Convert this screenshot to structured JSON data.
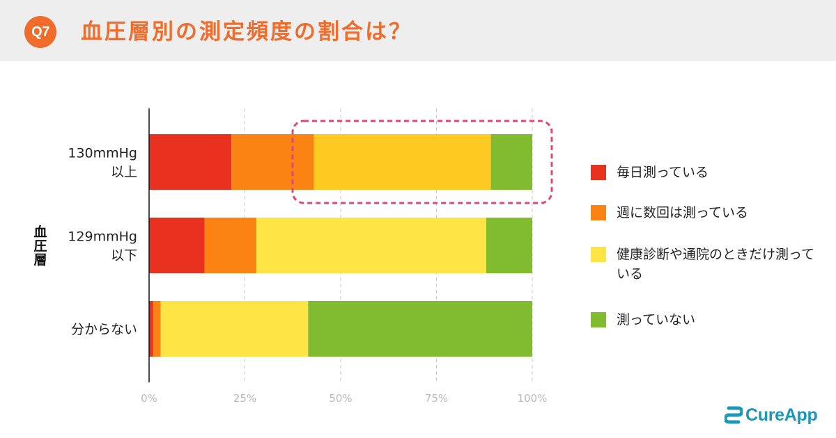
{
  "header": {
    "badge": "Q7",
    "title": "血圧層別の測定頻度の割合は？"
  },
  "logo": {
    "text": "CureApp",
    "color": "#1d97b6"
  },
  "chart_data": {
    "type": "bar",
    "orientation": "horizontal",
    "stacked": true,
    "percent": true,
    "ylabel": "血圧層",
    "categories": [
      [
        "130mmHg",
        "以上"
      ],
      [
        "129mmHg",
        "以下"
      ],
      [
        "分からない"
      ]
    ],
    "x_ticks": [
      "0%",
      "25%",
      "50%",
      "75%",
      "100%"
    ],
    "xlim": [
      0,
      100
    ],
    "grid": "vertical dashed",
    "legend_position": "right",
    "series": [
      {
        "name": "毎日測っている",
        "color": "#e8321f",
        "values": [
          21.5,
          14.5,
          1
        ]
      },
      {
        "name": "週に数回は測っている",
        "color": "#fa8314",
        "values": [
          21.5,
          13.5,
          2
        ]
      },
      {
        "name": "健康診断や通院のときだけ測っている",
        "color": "#fee444",
        "values": [
          46.2,
          60,
          38.5
        ]
      },
      {
        "name": "測っていない",
        "color": "#81bc30",
        "values": [
          10.8,
          12,
          58.5
        ]
      }
    ],
    "highlight": {
      "category_index": 0,
      "series_indices": [
        2,
        3
      ],
      "style": "dashed pink rounded box",
      "color": "#e0457d",
      "accent_color": "#fec920"
    }
  }
}
